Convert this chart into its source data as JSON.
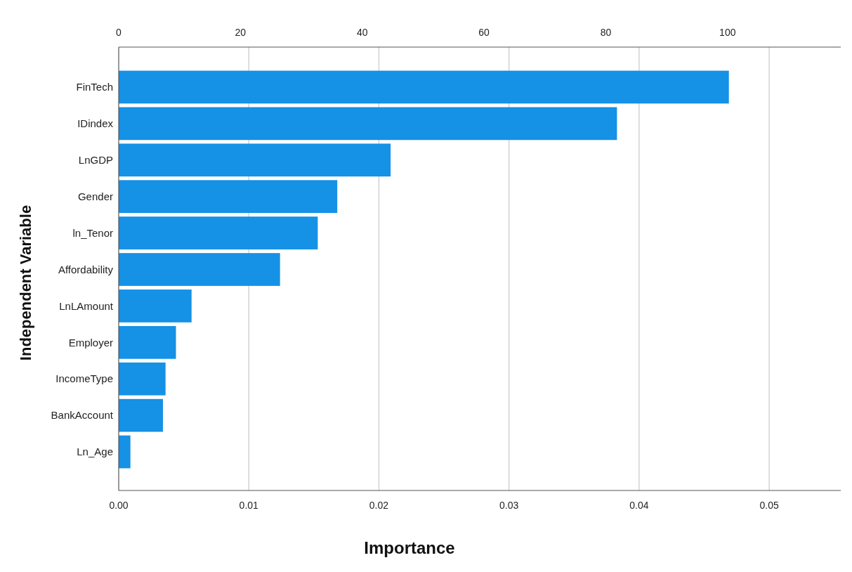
{
  "chart_data": {
    "type": "bar",
    "orientation": "horizontal",
    "xlabel": "Importance",
    "ylabel": "Independent Variable",
    "categories": [
      "FinTech",
      "IDindex",
      "LnGDP",
      "Gender",
      "ln_Tenor",
      "Affordability",
      "LnLAmount",
      "Employer",
      "IncomeType",
      "BankAccount",
      "Ln_Age"
    ],
    "values": [
      0.0469,
      0.0383,
      0.0209,
      0.0168,
      0.0153,
      0.0124,
      0.0056,
      0.0044,
      0.0036,
      0.0034,
      0.0009
    ],
    "color": "#1591e6",
    "xlim": [
      0,
      0.0555
    ],
    "xticks": [
      {
        "value": 0,
        "label": "0.00"
      },
      0.01,
      0.02,
      0.03,
      0.04,
      0.05
    ],
    "x2lim": [
      0,
      118.6
    ],
    "x2ticks": [
      0,
      20,
      40,
      60,
      80,
      100
    ],
    "grid": "x"
  }
}
